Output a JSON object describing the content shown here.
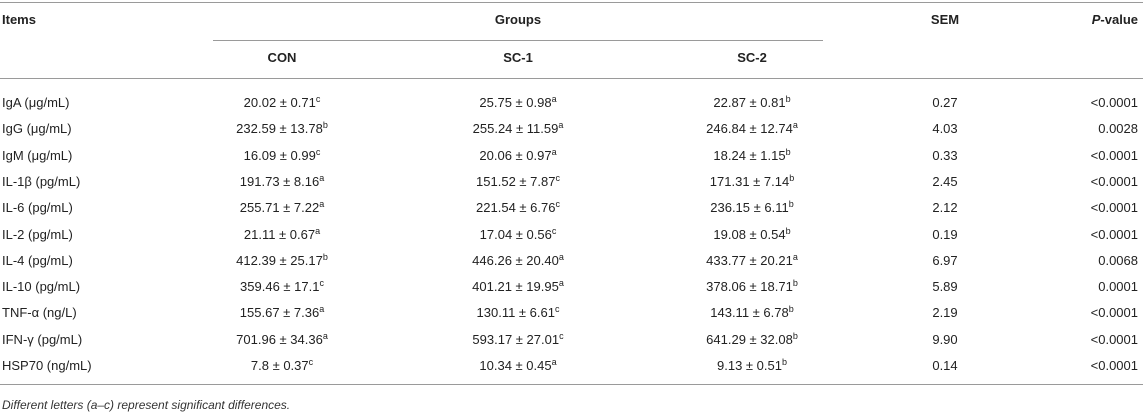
{
  "table": {
    "header": {
      "items": "Items",
      "groups": "Groups",
      "sem": "SEM",
      "pvalue": {
        "italic": "P",
        "text": "-value"
      },
      "group_names": [
        "CON",
        "SC-1",
        "SC-2"
      ]
    },
    "rows": [
      {
        "item": "IgA (μg/mL)",
        "cells": [
          {
            "value": "20.02 ± 0.71",
            "sup": "c"
          },
          {
            "value": "25.75 ± 0.98",
            "sup": "a"
          },
          {
            "value": "22.87 ± 0.81",
            "sup": "b"
          }
        ],
        "sem": "0.27",
        "p": "<0.0001"
      },
      {
        "item": "IgG (μg/mL)",
        "cells": [
          {
            "value": "232.59 ± 13.78",
            "sup": "b"
          },
          {
            "value": "255.24 ± 11.59",
            "sup": "a"
          },
          {
            "value": "246.84 ± 12.74",
            "sup": "a"
          }
        ],
        "sem": "4.03",
        "p": "0.0028"
      },
      {
        "item": "IgM (μg/mL)",
        "cells": [
          {
            "value": "16.09 ± 0.99",
            "sup": "c"
          },
          {
            "value": "20.06 ± 0.97",
            "sup": "a"
          },
          {
            "value": "18.24 ± 1.15",
            "sup": "b"
          }
        ],
        "sem": "0.33",
        "p": "<0.0001"
      },
      {
        "item": "IL-1β (pg/mL)",
        "cells": [
          {
            "value": "191.73 ± 8.16",
            "sup": "a"
          },
          {
            "value": "151.52 ± 7.87",
            "sup": "c"
          },
          {
            "value": "171.31 ± 7.14",
            "sup": "b"
          }
        ],
        "sem": "2.45",
        "p": "<0.0001"
      },
      {
        "item": "IL-6 (pg/mL)",
        "cells": [
          {
            "value": "255.71 ± 7.22",
            "sup": "a"
          },
          {
            "value": "221.54 ± 6.76",
            "sup": "c"
          },
          {
            "value": "236.15 ± 6.11",
            "sup": "b"
          }
        ],
        "sem": "2.12",
        "p": "<0.0001"
      },
      {
        "item": "IL-2 (pg/mL)",
        "cells": [
          {
            "value": "21.11 ± 0.67",
            "sup": "a"
          },
          {
            "value": "17.04 ± 0.56",
            "sup": "c"
          },
          {
            "value": "19.08 ± 0.54",
            "sup": "b"
          }
        ],
        "sem": "0.19",
        "p": "<0.0001"
      },
      {
        "item": "IL-4 (pg/mL)",
        "cells": [
          {
            "value": "412.39 ± 25.17",
            "sup": "b"
          },
          {
            "value": "446.26 ± 20.40",
            "sup": "a"
          },
          {
            "value": "433.77 ± 20.21",
            "sup": "a"
          }
        ],
        "sem": "6.97",
        "p": "0.0068"
      },
      {
        "item": "IL-10 (pg/mL)",
        "cells": [
          {
            "value": "359.46 ± 17.1",
            "sup": "c"
          },
          {
            "value": "401.21 ± 19.95",
            "sup": "a"
          },
          {
            "value": "378.06 ± 18.71",
            "sup": "b"
          }
        ],
        "sem": "5.89",
        "p": "0.0001"
      },
      {
        "item": "TNF-α (ng/L)",
        "cells": [
          {
            "value": "155.67 ± 7.36",
            "sup": "a"
          },
          {
            "value": "130.11 ± 6.61",
            "sup": "c"
          },
          {
            "value": "143.11 ± 6.78",
            "sup": "b"
          }
        ],
        "sem": "2.19",
        "p": "<0.0001"
      },
      {
        "item": "IFN-γ (pg/mL)",
        "cells": [
          {
            "value": "701.96 ± 34.36",
            "sup": "a"
          },
          {
            "value": "593.17 ± 27.01",
            "sup": "c"
          },
          {
            "value": "641.29 ± 32.08",
            "sup": "b"
          }
        ],
        "sem": "9.90",
        "p": "<0.0001"
      },
      {
        "item": "HSP70 (ng/mL)",
        "cells": [
          {
            "value": "7.8 ± 0.37",
            "sup": "c"
          },
          {
            "value": "10.34 ± 0.45",
            "sup": "a"
          },
          {
            "value": "9.13 ± 0.51",
            "sup": "b"
          }
        ],
        "sem": "0.14",
        "p": "<0.0001"
      }
    ]
  },
  "footnote": "Different letters (a–c) represent significant differences."
}
